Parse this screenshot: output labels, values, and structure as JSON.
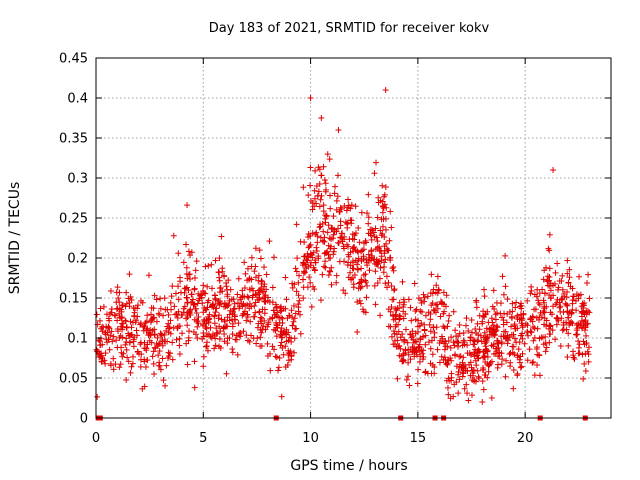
{
  "chart_data": {
    "type": "scatter",
    "title": "Day 183 of 2021, SRMTID for receiver kokv",
    "xlabel": "GPS time / hours",
    "ylabel": "SRMTID / TECUs",
    "xlim": [
      0,
      24
    ],
    "ylim": [
      0,
      0.45
    ],
    "x_ticks": [
      0,
      5,
      10,
      15,
      20
    ],
    "x_tick_labels": [
      "0",
      "5",
      "10",
      "15",
      "20"
    ],
    "y_ticks": [
      0,
      0.05,
      0.1,
      0.15,
      0.2,
      0.25,
      0.3,
      0.35,
      0.4,
      0.45
    ],
    "y_tick_labels": [
      "0",
      "0.05",
      "0.1",
      "0.15",
      "0.2",
      "0.25",
      "0.3",
      "0.35",
      "0.4",
      "0.45"
    ],
    "grid": true,
    "marker": "+",
    "color": "#e00000",
    "envelope_points_hours_tecu": [
      [
        0.0,
        0.09
      ],
      [
        1.0,
        0.11
      ],
      [
        2.0,
        0.1
      ],
      [
        3.0,
        0.1
      ],
      [
        4.0,
        0.14
      ],
      [
        4.5,
        0.15
      ],
      [
        5.0,
        0.12
      ],
      [
        6.0,
        0.13
      ],
      [
        7.0,
        0.14
      ],
      [
        7.7,
        0.14
      ],
      [
        8.5,
        0.1
      ],
      [
        9.0,
        0.1
      ],
      [
        9.5,
        0.16
      ],
      [
        10.0,
        0.22
      ],
      [
        10.5,
        0.26
      ],
      [
        11.0,
        0.22
      ],
      [
        11.5,
        0.24
      ],
      [
        12.0,
        0.2
      ],
      [
        12.5,
        0.18
      ],
      [
        13.0,
        0.21
      ],
      [
        13.5,
        0.23
      ],
      [
        14.0,
        0.1
      ],
      [
        14.5,
        0.09
      ],
      [
        15.0,
        0.1
      ],
      [
        15.5,
        0.11
      ],
      [
        16.0,
        0.12
      ],
      [
        16.5,
        0.07
      ],
      [
        17.0,
        0.07
      ],
      [
        17.5,
        0.08
      ],
      [
        18.0,
        0.09
      ],
      [
        18.5,
        0.1
      ],
      [
        19.0,
        0.12
      ],
      [
        19.5,
        0.1
      ],
      [
        20.0,
        0.11
      ],
      [
        20.5,
        0.11
      ],
      [
        21.0,
        0.14
      ],
      [
        21.5,
        0.15
      ],
      [
        22.0,
        0.13
      ],
      [
        22.5,
        0.12
      ],
      [
        23.0,
        0.12
      ]
    ],
    "spread_tecu": 0.045,
    "notable_points": [
      {
        "x": 10.0,
        "y": 0.4
      },
      {
        "x": 13.5,
        "y": 0.41
      },
      {
        "x": 10.5,
        "y": 0.375
      },
      {
        "x": 11.3,
        "y": 0.36
      },
      {
        "x": 21.3,
        "y": 0.31
      },
      {
        "x": 4.6,
        "y": 0.038
      },
      {
        "x": 18.0,
        "y": 0.02
      }
    ],
    "zero_points_hours": [
      0.1,
      0.2,
      8.4,
      14.2,
      15.8,
      16.2,
      20.7,
      22.8
    ],
    "n_points": 1900
  }
}
